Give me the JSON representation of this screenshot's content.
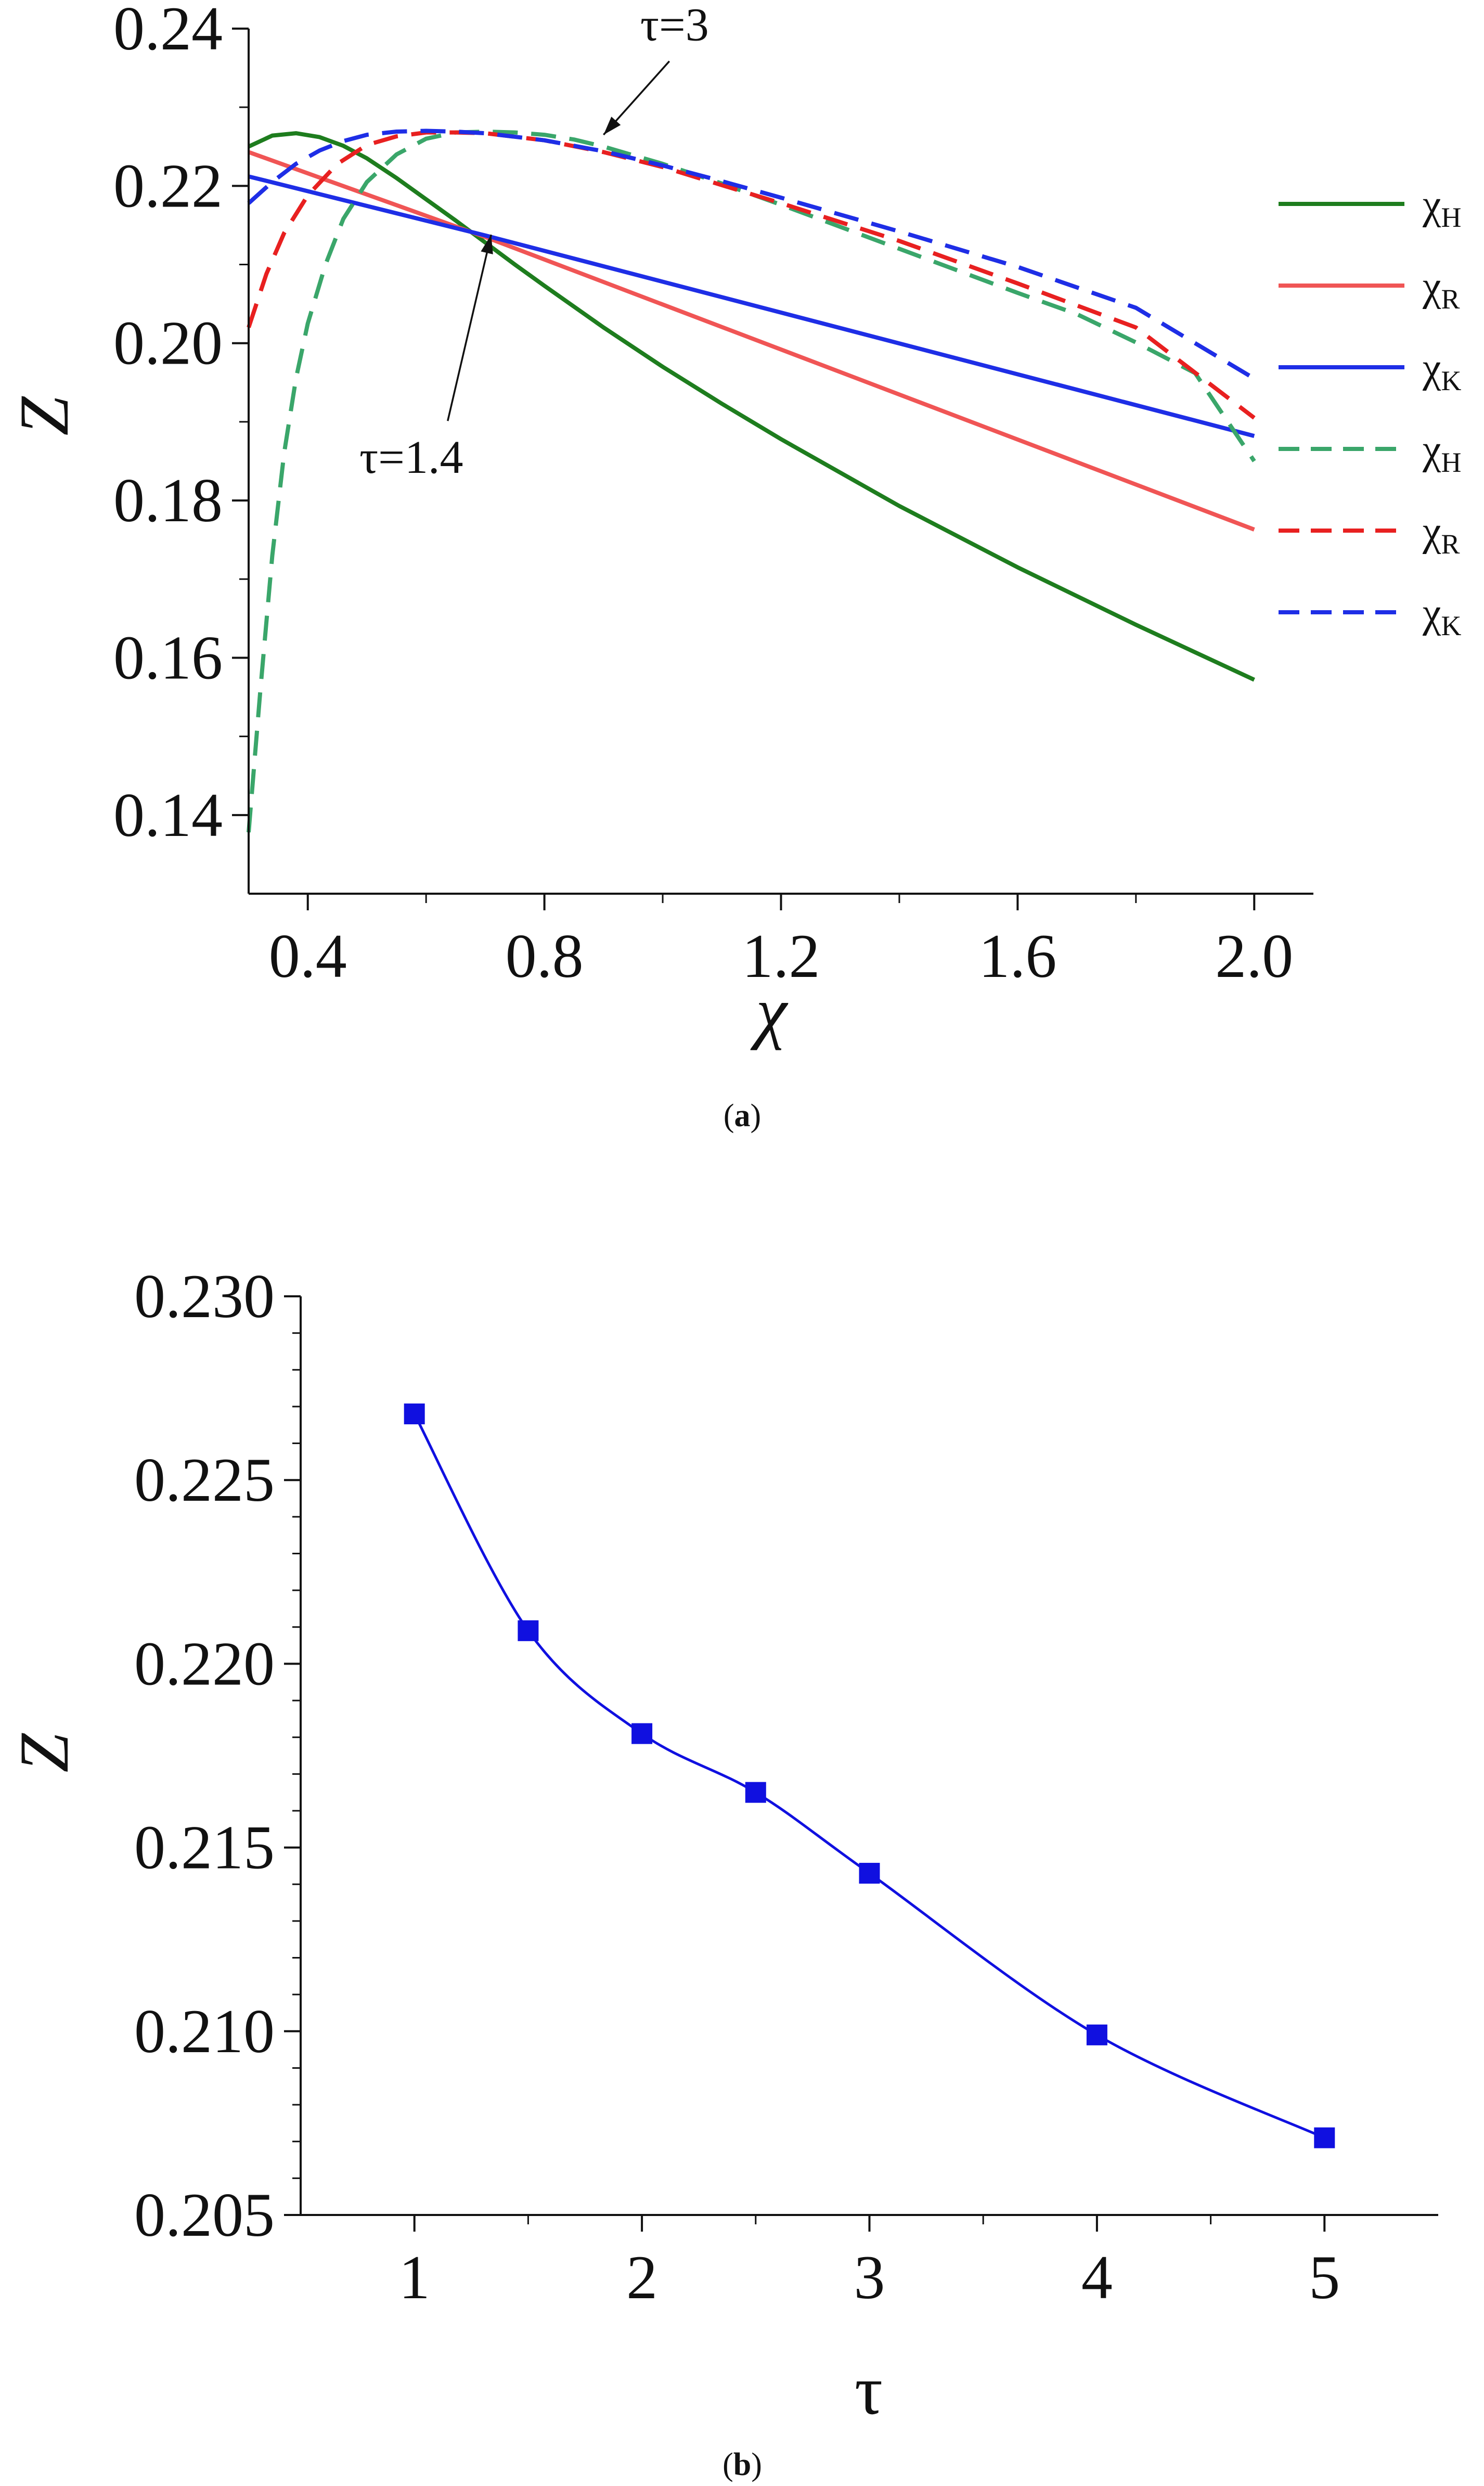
{
  "chart_data": [
    {
      "type": "line",
      "panel": "a",
      "caption": {
        "open": "(",
        "letter": "a",
        "close": ")"
      },
      "xlabel": "χ",
      "ylabel": "Z",
      "xlim": [
        0.3,
        2.1
      ],
      "ylim": [
        0.13,
        0.24
      ],
      "xticks": [
        0.4,
        0.8,
        1.2,
        1.6,
        2.0
      ],
      "xtick_labels": [
        "0.4",
        "0.8",
        "1.2",
        "1.6",
        "2.0"
      ],
      "yticks": [
        0.14,
        0.16,
        0.18,
        0.2,
        0.22,
        0.24
      ],
      "ytick_labels": [
        "0.14",
        "0.16",
        "0.18",
        "0.20",
        "0.22",
        "0.24"
      ],
      "legend_position": "right",
      "annotations": [
        {
          "text": "τ=3",
          "arrow_to": [
            0.9,
            0.2265
          ],
          "label_at": [
            1.02,
            0.2385
          ]
        },
        {
          "text": "τ=1.4",
          "arrow_to": [
            0.71,
            0.2138
          ],
          "label_at": [
            0.575,
            0.1835
          ]
        }
      ],
      "series": [
        {
          "base": "χ",
          "sub": "H",
          "color": "#1e7d1e",
          "dash": "solid",
          "x": [
            0.3,
            0.34,
            0.38,
            0.42,
            0.46,
            0.5,
            0.55,
            0.6,
            0.65,
            0.7,
            0.75,
            0.8,
            0.9,
            1.0,
            1.1,
            1.2,
            1.4,
            1.6,
            1.8,
            2.0
          ],
          "y": [
            0.225,
            0.2264,
            0.2267,
            0.2262,
            0.2251,
            0.2235,
            0.221,
            0.2183,
            0.2156,
            0.2128,
            0.21,
            0.2073,
            0.202,
            0.197,
            0.1923,
            0.1878,
            0.1793,
            0.1715,
            0.1642,
            0.1572
          ]
        },
        {
          "base": "χ",
          "sub": "R",
          "color": "#f05555",
          "dash": "solid",
          "x": [
            0.3,
            0.7,
            2.0
          ],
          "y": [
            0.2243,
            0.2135,
            0.1763
          ]
        },
        {
          "base": "χ",
          "sub": "K",
          "color": "#1e2ee6",
          "dash": "solid",
          "x": [
            0.3,
            0.7,
            2.0
          ],
          "y": [
            0.2212,
            0.2137,
            0.1882
          ]
        },
        {
          "base": "χ",
          "sub": "H",
          "color": "#3aa66a",
          "dash": "dashed",
          "x": [
            0.3,
            0.32,
            0.34,
            0.36,
            0.38,
            0.4,
            0.43,
            0.46,
            0.5,
            0.55,
            0.6,
            0.65,
            0.7,
            0.75,
            0.8,
            0.85,
            0.9,
            1.0,
            1.1,
            1.2,
            1.3,
            1.4,
            1.5,
            1.6,
            1.7,
            1.8,
            1.9,
            2.0
          ],
          "y": [
            0.1378,
            0.156,
            0.173,
            0.186,
            0.1955,
            0.2025,
            0.21,
            0.2158,
            0.2205,
            0.224,
            0.226,
            0.2268,
            0.2269,
            0.2268,
            0.2265,
            0.2259,
            0.225,
            0.2228,
            0.2203,
            0.2176,
            0.2148,
            0.212,
            0.2092,
            0.2064,
            0.2037,
            0.2001,
            0.1962,
            0.185
          ]
        },
        {
          "base": "χ",
          "sub": "R",
          "color": "#e82020",
          "dash": "dashed",
          "x": [
            0.3,
            0.33,
            0.36,
            0.4,
            0.45,
            0.5,
            0.55,
            0.6,
            0.65,
            0.7,
            0.8,
            0.9,
            1.0,
            1.1,
            1.2,
            1.4,
            1.6,
            1.8,
            2.0
          ],
          "y": [
            0.202,
            0.2088,
            0.214,
            0.2188,
            0.2228,
            0.2252,
            0.2263,
            0.2268,
            0.2268,
            0.2267,
            0.2258,
            0.2243,
            0.2224,
            0.2201,
            0.2178,
            0.213,
            0.2076,
            0.202,
            0.1905
          ]
        },
        {
          "base": "χ",
          "sub": "K",
          "color": "#1e2ee6",
          "dash": "dashed",
          "x": [
            0.3,
            0.34,
            0.38,
            0.42,
            0.46,
            0.5,
            0.55,
            0.6,
            0.65,
            0.7,
            0.8,
            0.9,
            1.0,
            1.1,
            1.2,
            1.4,
            1.6,
            1.8,
            2.0
          ],
          "y": [
            0.2178,
            0.2205,
            0.2228,
            0.2245,
            0.2257,
            0.2265,
            0.2269,
            0.227,
            0.2269,
            0.2267,
            0.2258,
            0.2244,
            0.2226,
            0.2206,
            0.2185,
            0.2142,
            0.2097,
            0.2045,
            0.1955
          ]
        }
      ]
    },
    {
      "type": "line",
      "panel": "b",
      "caption": {
        "open": "(",
        "letter": "b",
        "close": ")"
      },
      "xlabel": "τ",
      "ylabel": "Z",
      "xlim": [
        0.5,
        5.5
      ],
      "ylim": [
        0.205,
        0.23
      ],
      "xticks": [
        1,
        2,
        3,
        4,
        5
      ],
      "xtick_labels": [
        "1",
        "2",
        "3",
        "4",
        "5"
      ],
      "yticks": [
        0.205,
        0.21,
        0.215,
        0.22,
        0.225,
        0.23
      ],
      "ytick_labels": [
        "0.205",
        "0.210",
        "0.215",
        "0.220",
        "0.225",
        "0.230"
      ],
      "series": [
        {
          "color": "#1010e0",
          "marker": "square",
          "x": [
            1.0,
            1.5,
            2.0,
            2.5,
            3.0,
            4.0,
            5.0
          ],
          "y": [
            0.2268,
            0.2209,
            0.2181,
            0.2165,
            0.2143,
            0.2099,
            0.2071
          ]
        }
      ]
    }
  ]
}
